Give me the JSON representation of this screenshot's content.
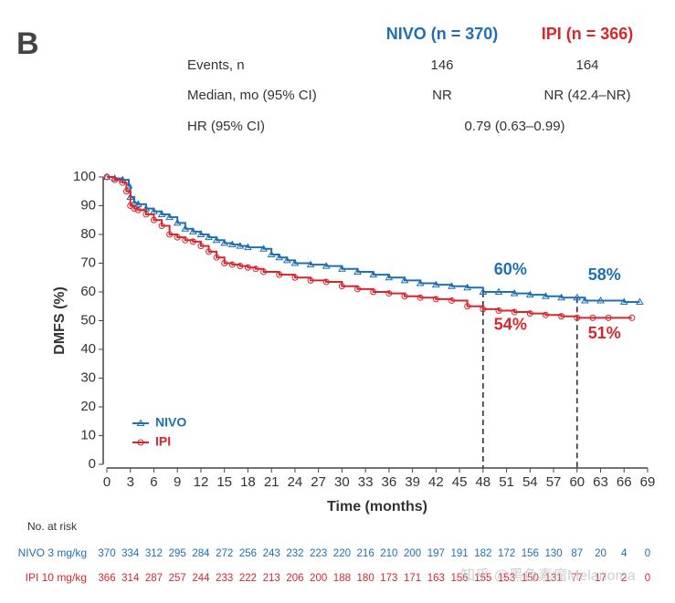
{
  "panel_label": "B",
  "header": {
    "columns": [
      {
        "text": "NIVO (n = 370)",
        "color": "#1f6fb4"
      },
      {
        "text": "IPI (n = 366)",
        "color": "#d8262e"
      }
    ],
    "rows": [
      {
        "label": "Events, n",
        "values": [
          "146",
          "164"
        ]
      },
      {
        "label": "Median, mo (95% CI)",
        "values": [
          "NR",
          "NR (42.4–NR)"
        ]
      },
      {
        "label": "HR (95% CI)",
        "values": [
          "0.79 (0.63–0.99)"
        ]
      }
    ]
  },
  "chart_data": {
    "type": "line",
    "xlabel": "Time (months)",
    "ylabel": "DMFS (%)",
    "xlim": [
      0,
      69
    ],
    "ylim": [
      0,
      100
    ],
    "xticks": [
      0,
      3,
      6,
      9,
      12,
      15,
      18,
      21,
      24,
      27,
      30,
      33,
      36,
      39,
      42,
      45,
      48,
      51,
      54,
      57,
      60,
      63,
      66,
      69
    ],
    "yticks": [
      0,
      10,
      20,
      30,
      40,
      50,
      60,
      70,
      80,
      90,
      100
    ],
    "legend": "lower left",
    "series": [
      {
        "name": "NIVO",
        "color": "#1f6fb4",
        "marker": "triangle",
        "x": [
          0,
          1,
          2,
          2.8,
          3,
          3.5,
          4,
          5,
          6,
          7,
          8,
          9,
          10,
          11,
          12,
          13,
          14,
          15,
          16,
          17,
          18,
          20,
          21,
          22,
          23,
          24,
          26,
          28,
          30,
          32,
          34,
          36,
          38,
          40,
          42,
          44,
          46,
          48,
          50,
          52,
          54,
          56,
          58,
          60,
          61,
          63,
          66,
          68
        ],
        "values": [
          100,
          99.5,
          99,
          97,
          93,
          91,
          90.5,
          89,
          88,
          87,
          86,
          84,
          82,
          81,
          80,
          79,
          78,
          77,
          76.5,
          76,
          75.5,
          75,
          73,
          72,
          71,
          70,
          69.5,
          69,
          68,
          67,
          66,
          65,
          64,
          63,
          62.5,
          62,
          61.5,
          60,
          60,
          59.5,
          59,
          58.5,
          58,
          58,
          57,
          57,
          56.5,
          56.5
        ]
      },
      {
        "name": "IPI",
        "color": "#d8262e",
        "marker": "circle",
        "x": [
          0,
          1,
          2,
          2.5,
          3,
          3.5,
          4,
          5,
          6,
          7,
          8,
          9,
          10,
          11,
          12,
          13,
          14,
          15,
          16,
          17,
          18,
          19,
          20,
          22,
          24,
          26,
          28,
          30,
          32,
          34,
          36,
          38,
          40,
          42,
          44,
          46,
          48,
          50,
          52,
          54,
          56,
          58,
          60,
          62,
          64,
          67
        ],
        "values": [
          100,
          99,
          98,
          95,
          90,
          89,
          88.5,
          87,
          85,
          83,
          80,
          79,
          78,
          77.5,
          76,
          74,
          72,
          70,
          69.5,
          69,
          68.5,
          68,
          67,
          66,
          65,
          64,
          63.5,
          62,
          61,
          60,
          59.5,
          58.5,
          58,
          57.5,
          57,
          55,
          54,
          53.5,
          53,
          52.5,
          52,
          51.5,
          51,
          51,
          51,
          51
        ]
      }
    ],
    "vlines": [
      48,
      60
    ],
    "annotations": [
      {
        "label": "60%",
        "value": 60,
        "x": 48,
        "series": 0
      },
      {
        "label": "58%",
        "value": 58,
        "x": 60,
        "series": 0
      },
      {
        "label": "54%",
        "value": 54,
        "x": 48,
        "series": 1
      },
      {
        "label": "51%",
        "value": 51,
        "x": 60,
        "series": 1
      }
    ]
  },
  "risk_table": {
    "title": "No. at risk",
    "rows": [
      {
        "label": "NIVO 3 mg/kg",
        "color": "#1f6fb4",
        "values": [
          370,
          334,
          312,
          295,
          284,
          272,
          256,
          243,
          232,
          223,
          220,
          216,
          210,
          200,
          197,
          191,
          182,
          172,
          156,
          130,
          87,
          20,
          4,
          0
        ]
      },
      {
        "label": "IPI 10 mg/kg",
        "color": "#d8262e",
        "values": [
          366,
          314,
          287,
          257,
          244,
          233,
          222,
          213,
          206,
          200,
          188,
          180,
          173,
          171,
          163,
          156,
          155,
          153,
          150,
          131,
          77,
          17,
          2,
          0
        ]
      }
    ]
  },
  "watermark": "知乎 @黑色素瘤Melanoma"
}
